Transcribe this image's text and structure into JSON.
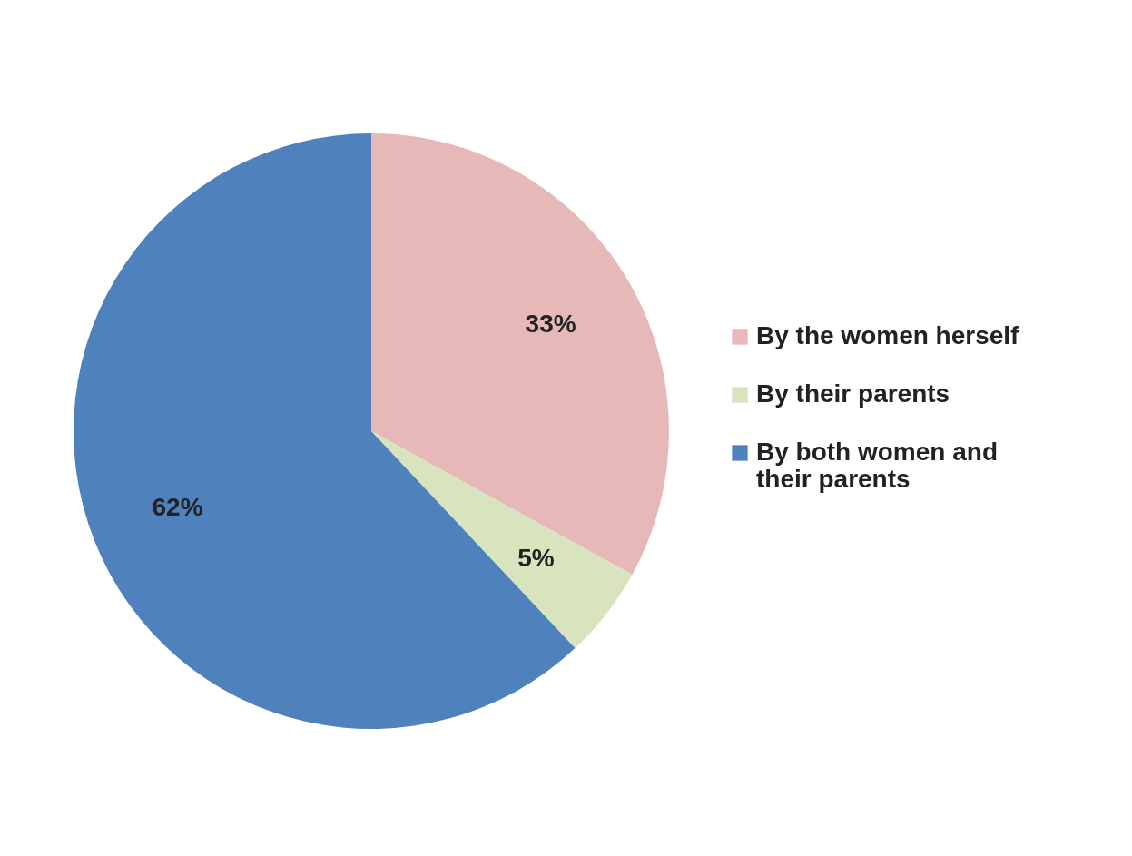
{
  "chart_data": {
    "type": "pie",
    "categories": [
      "By the women herself",
      "By their parents",
      "By both women and their parents"
    ],
    "values": [
      33,
      5,
      62
    ],
    "colors": [
      "#e6b9b8",
      "#d7e4bd",
      "#4f81bd"
    ],
    "value_labels": [
      "33%",
      "5%",
      "62%"
    ],
    "legend": "right"
  }
}
